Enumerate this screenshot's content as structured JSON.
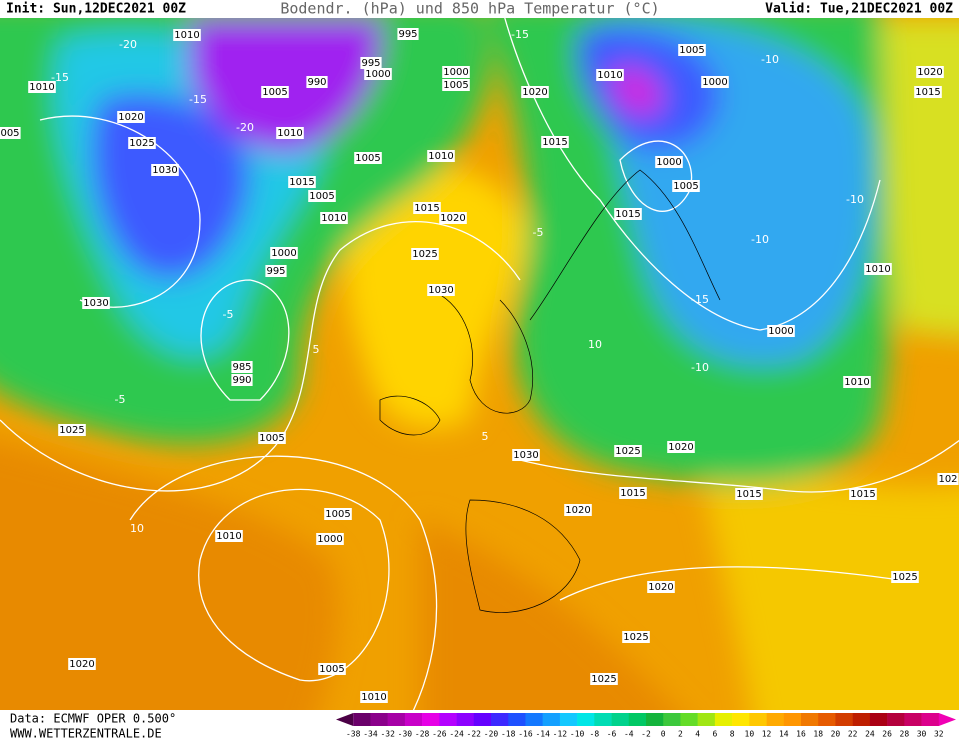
{
  "header": {
    "init": "Init: Sun,12DEC2021 00Z",
    "title": "Bodendr. (hPa) und 850 hPa Temperatur (°C)",
    "valid": "Valid: Tue,21DEC2021 00Z"
  },
  "map": {
    "isobar_labels": [
      "1010",
      "995",
      "1010",
      "1005",
      "1000",
      "995",
      "1000",
      "1005",
      "990",
      "1020",
      "1010",
      "1005",
      "1000",
      "1020",
      "1015",
      "1020",
      "1025",
      "1010",
      "1015",
      "1005",
      "1010",
      "1030",
      "1000",
      "1005",
      "1015",
      "1005",
      "1010",
      "1015",
      "1020",
      "1015",
      "1000",
      "1025",
      "995",
      "1010",
      "1030",
      "1030",
      "1000",
      "985",
      "990",
      "1010",
      "1025",
      "1005",
      "1020",
      "1025",
      "1030",
      "1015",
      "1015",
      "1015",
      "1020",
      "1005",
      "1000",
      "1010",
      "1020",
      "1025",
      "1025",
      "1020",
      "1005",
      "1025",
      "1010",
      "005",
      "102"
    ],
    "isotherm_labels": [
      "-20",
      "-15",
      "-20",
      "-15",
      "-10",
      "-10",
      "-10",
      "-10",
      "-5",
      "-5",
      "-5",
      "5",
      "5",
      "10",
      "10",
      "-15",
      "-15"
    ]
  },
  "footer": {
    "source": "Data: ECMWF OPER 0.500°",
    "site": "WWW.WETTERZENTRALE.DE"
  },
  "colorbar": {
    "labels": [
      "-38",
      "-34",
      "-32",
      "-30",
      "-28",
      "-26",
      "-24",
      "-22",
      "-20",
      "-18",
      "-16",
      "-14",
      "-12",
      "-10",
      "-8",
      "-6",
      "-4",
      "-2",
      "0",
      "2",
      "4",
      "6",
      "8",
      "10",
      "12",
      "14",
      "16",
      "18",
      "20",
      "22",
      "24",
      "26",
      "28",
      "30",
      "32"
    ],
    "colors": [
      "#4b0046",
      "#6a006a",
      "#8a008a",
      "#a600a6",
      "#c800c8",
      "#e600e6",
      "#b400ff",
      "#8c00ff",
      "#6400ff",
      "#3c28ff",
      "#1e50ff",
      "#1478ff",
      "#14a0ff",
      "#14c8ff",
      "#00e6e6",
      "#00dcb4",
      "#00d28c",
      "#00c864",
      "#14b43c",
      "#3cc83c",
      "#64dc28",
      "#a0e614",
      "#e6f000",
      "#ffe600",
      "#ffc800",
      "#ffaa00",
      "#ff9600",
      "#f07800",
      "#e65a00",
      "#d23c00",
      "#be1e00",
      "#aa0014",
      "#b4003c",
      "#c80064",
      "#dc008c",
      "#f000b4"
    ]
  }
}
